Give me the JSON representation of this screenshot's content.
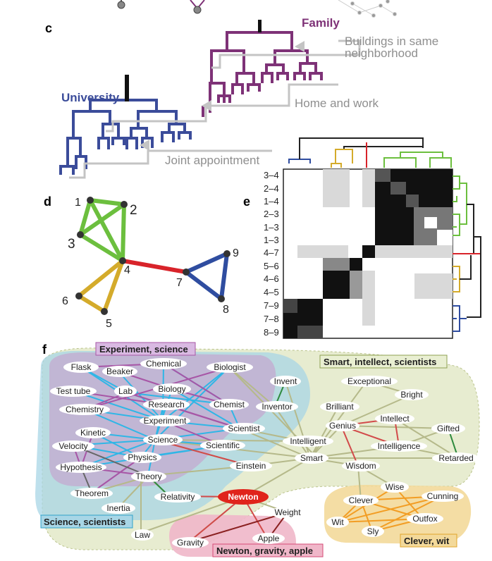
{
  "panel_c": {
    "letter": "c",
    "labels": {
      "university": "University",
      "family": "Family",
      "buildings_l1": "Buildings in same",
      "buildings_l2": "neighborhood",
      "home_work": "Home and work",
      "joint": "Joint appointment"
    },
    "colors": {
      "university": "#3b4c9a",
      "family": "#7e3277",
      "arrows": "#bdbdbd"
    }
  },
  "panel_d": {
    "letter": "d",
    "nodes": [
      "1",
      "2",
      "3",
      "4",
      "5",
      "6",
      "7",
      "8",
      "9"
    ],
    "colors": {
      "green": "#6cbf3e",
      "gold": "#d4ab2b",
      "red": "#d8232a",
      "blue": "#2f4da0"
    }
  },
  "panel_e": {
    "letter": "e",
    "row_labels": [
      "3–4",
      "2–4",
      "1–4",
      "2–3",
      "1–3",
      "1–3",
      "4–7",
      "5–6",
      "4–6",
      "4–5",
      "7–9",
      "7–8",
      "8–9"
    ]
  },
  "panel_f": {
    "letter": "f",
    "clusters": {
      "experiment": "Experiment, science",
      "smart": "Smart, intellect, scientists",
      "science": "Science, scientists",
      "newton": "Newton, gravity, apple",
      "clever": "Clever, wit"
    },
    "words": {
      "flask": "Flask",
      "beaker": "Beaker",
      "chemical": "Chemical",
      "biologist": "Biologist",
      "test_tube": "Test tube",
      "lab": "Lab",
      "biology": "Biology",
      "chemistry": "Chemistry",
      "research": "Research",
      "chemist": "Chemist",
      "experiment": "Experiment",
      "kinetic": "Kinetic",
      "science": "Science",
      "scientist": "Scientist",
      "velocity": "Velocity",
      "scientific": "Scientific",
      "physics": "Physics",
      "hypothesis": "Hypothesis",
      "einstein": "Einstein",
      "theory": "Theory",
      "theorem": "Theorem",
      "relativity": "Relativity",
      "inertia": "Inertia",
      "law": "Law",
      "gravity": "Gravity",
      "apple": "Apple",
      "newton": "Newton",
      "weight": "Weight",
      "invent": "Invent",
      "inventor": "Inventor",
      "exceptional": "Exceptional",
      "bright": "Bright",
      "brilliant": "Brilliant",
      "intellect": "Intellect",
      "genius": "Genius",
      "gifted": "Gifted",
      "intelligent": "Intelligent",
      "intelligence": "Intelligence",
      "smart": "Smart",
      "retarded": "Retarded",
      "wisdom": "Wisdom",
      "wise": "Wise",
      "clever": "Clever",
      "cunning": "Cunning",
      "wit": "Wit",
      "outfox": "Outfox",
      "sly": "Sly"
    }
  }
}
